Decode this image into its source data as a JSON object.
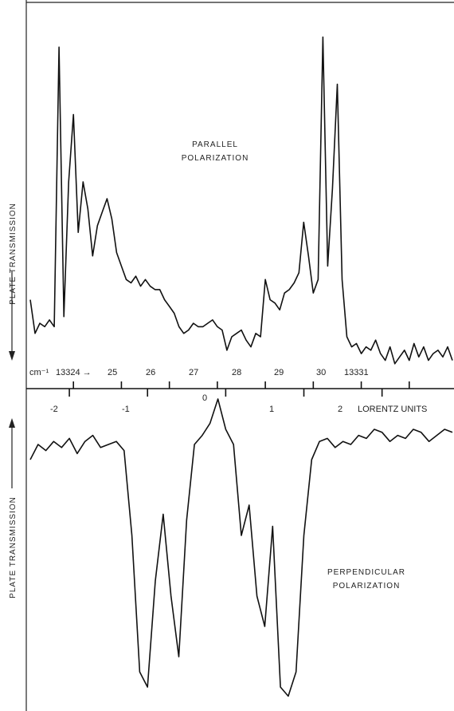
{
  "chart_data": [
    {
      "type": "line",
      "panel": "top",
      "title": "PARALLEL",
      "subtitle": "POLARIZATION",
      "ylabel": "PLATE TRANSMISSION",
      "xlabel": "",
      "x_unit_label": "cm⁻¹",
      "tick_labels": [
        "13324 →",
        "25",
        "26",
        "27",
        "28",
        "29",
        "30",
        "13331"
      ],
      "tick_values": [
        13324,
        13325,
        13326,
        13327,
        13328,
        13329,
        13330,
        13331
      ],
      "x_range": [
        13323.1,
        13331.9
      ],
      "y_range": [
        0,
        1
      ],
      "y_direction": "down",
      "series": [
        {
          "x": [
            13323.1,
            13323.2,
            13323.3,
            13323.4,
            13323.5,
            13323.6,
            13323.7,
            13323.8,
            13323.9,
            13324.0,
            13324.1,
            13324.2,
            13324.3,
            13324.4,
            13324.5,
            13324.6,
            13324.7,
            13324.8,
            13324.9,
            13325.0,
            13325.1,
            13325.2,
            13325.3,
            13325.4,
            13325.5,
            13325.6,
            13325.7,
            13325.8,
            13325.9,
            13326.0,
            13326.1,
            13326.2,
            13326.3,
            13326.4,
            13326.5,
            13326.6,
            13326.7,
            13326.8,
            13326.9,
            13327.0,
            13327.1,
            13327.2,
            13327.3,
            13327.4,
            13327.5,
            13327.6,
            13327.7,
            13327.8,
            13327.9,
            13328.0,
            13328.1,
            13328.2,
            13328.3,
            13328.4,
            13328.5,
            13328.6,
            13328.7,
            13328.8,
            13328.9,
            13329.0,
            13329.1,
            13329.2,
            13329.3,
            13329.4,
            13329.5,
            13329.6,
            13329.7,
            13329.8,
            13329.9,
            13330.0,
            13330.1,
            13330.2,
            13330.3,
            13330.4,
            13330.5,
            13330.6,
            13330.7,
            13330.8,
            13330.9,
            13331.0,
            13331.1,
            13331.2,
            13331.3,
            13331.4,
            13331.5,
            13331.6,
            13331.7,
            13331.8,
            13331.9
          ],
          "values": [
            0.2,
            0.1,
            0.13,
            0.12,
            0.14,
            0.12,
            0.95,
            0.15,
            0.55,
            0.75,
            0.4,
            0.55,
            0.47,
            0.33,
            0.42,
            0.46,
            0.5,
            0.44,
            0.34,
            0.3,
            0.26,
            0.25,
            0.27,
            0.24,
            0.26,
            0.24,
            0.23,
            0.23,
            0.2,
            0.18,
            0.16,
            0.12,
            0.1,
            0.11,
            0.13,
            0.12,
            0.12,
            0.13,
            0.14,
            0.12,
            0.11,
            0.05,
            0.09,
            0.1,
            0.11,
            0.08,
            0.06,
            0.1,
            0.09,
            0.26,
            0.2,
            0.19,
            0.17,
            0.22,
            0.23,
            0.25,
            0.28,
            0.43,
            0.33,
            0.22,
            0.26,
            0.98,
            0.3,
            0.53,
            0.84,
            0.26,
            0.09,
            0.06,
            0.07,
            0.04,
            0.06,
            0.05,
            0.08,
            0.04,
            0.02,
            0.06,
            0.01,
            0.03,
            0.05,
            0.02,
            0.07,
            0.03,
            0.06,
            0.02,
            0.04,
            0.05,
            0.03,
            0.06,
            0.02
          ]
        }
      ]
    },
    {
      "type": "line",
      "panel": "bottom",
      "title": "PERPENDICULAR",
      "subtitle": "POLARIZATION",
      "ylabel": "PLATE TRANSMISSION",
      "xlabel": "LORENTZ UNITS",
      "tick_labels": [
        "-2",
        "-1",
        "0",
        "1",
        "2"
      ],
      "tick_values": [
        -2,
        -1,
        0,
        1,
        2
      ],
      "x_range": [
        -2.5,
        2.9
      ],
      "y_range": [
        0,
        1
      ],
      "y_direction": "up",
      "series": [
        {
          "x": [
            -2.5,
            -2.4,
            -2.3,
            -2.2,
            -2.1,
            -2.0,
            -1.9,
            -1.8,
            -1.7,
            -1.6,
            -1.5,
            -1.4,
            -1.3,
            -1.2,
            -1.1,
            -1.0,
            -0.9,
            -0.8,
            -0.7,
            -0.6,
            -0.5,
            -0.4,
            -0.3,
            -0.2,
            -0.1,
            0.0,
            0.1,
            0.2,
            0.3,
            0.4,
            0.5,
            0.6,
            0.7,
            0.8,
            0.9,
            1.0,
            1.1,
            1.2,
            1.3,
            1.4,
            1.5,
            1.6,
            1.7,
            1.8,
            1.9,
            2.0,
            2.1,
            2.2,
            2.3,
            2.4,
            2.5,
            2.6,
            2.7,
            2.8,
            2.9
          ],
          "values": [
            0.8,
            0.85,
            0.83,
            0.86,
            0.84,
            0.87,
            0.82,
            0.86,
            0.88,
            0.84,
            0.85,
            0.86,
            0.83,
            0.55,
            0.1,
            0.05,
            0.4,
            0.62,
            0.35,
            0.15,
            0.6,
            0.85,
            0.88,
            0.92,
            1.0,
            0.9,
            0.85,
            0.55,
            0.65,
            0.35,
            0.25,
            0.58,
            0.05,
            0.02,
            0.1,
            0.55,
            0.8,
            0.86,
            0.87,
            0.84,
            0.86,
            0.85,
            0.88,
            0.87,
            0.9,
            0.89,
            0.86,
            0.88,
            0.87,
            0.9,
            0.89,
            0.86,
            0.88,
            0.9,
            0.89
          ]
        }
      ]
    }
  ]
}
